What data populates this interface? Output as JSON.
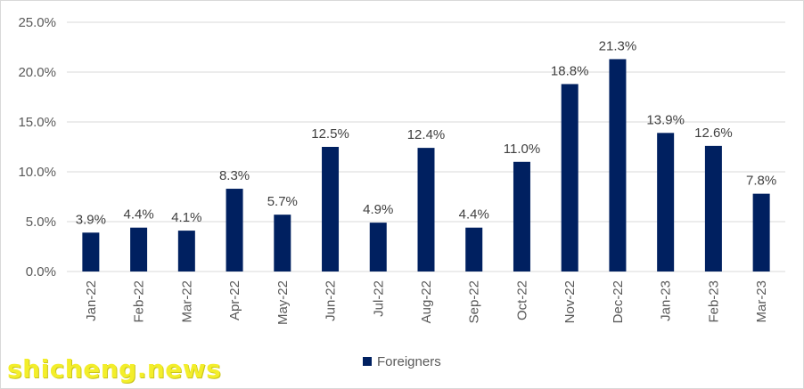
{
  "chart_data": {
    "type": "bar",
    "title": "",
    "xlabel": "",
    "ylabel": "",
    "categories": [
      "Jan-22",
      "Feb-22",
      "Mar-22",
      "Apr-22",
      "May-22",
      "Jun-22",
      "Jul-22",
      "Aug-22",
      "Sep-22",
      "Oct-22",
      "Nov-22",
      "Dec-22",
      "Jan-23",
      "Feb-23",
      "Mar-23"
    ],
    "series": [
      {
        "name": "Foreigners",
        "color": "#002060",
        "values": [
          3.9,
          4.4,
          4.1,
          8.3,
          5.7,
          12.5,
          4.9,
          12.4,
          4.4,
          11.0,
          18.8,
          21.3,
          13.9,
          12.6,
          7.8
        ],
        "data_labels": [
          "3.9%",
          "4.4%",
          "4.1%",
          "8.3%",
          "5.7%",
          "12.5%",
          "4.9%",
          "12.4%",
          "4.4%",
          "11.0%",
          "18.8%",
          "21.3%",
          "13.9%",
          "12.6%",
          "7.8%"
        ]
      }
    ],
    "ylim": [
      0,
      25
    ],
    "y_ticks": [
      0,
      5,
      10,
      15,
      20,
      25
    ],
    "y_tick_labels": [
      "0.0%",
      "5.0%",
      "10.0%",
      "15.0%",
      "20.0%",
      "25.0%"
    ],
    "grid": "horizontal",
    "gridline_color": "#d9d9d9",
    "legend_position": "bottom"
  },
  "watermark": {
    "text": "shicheng.news",
    "color": "#f3ee2a"
  }
}
